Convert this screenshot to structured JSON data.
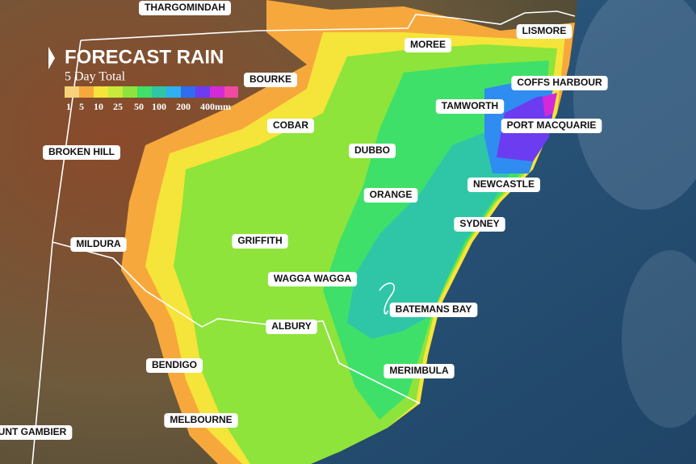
{
  "header": {
    "title": "FORECAST RAIN",
    "subtitle": "5 Day Total"
  },
  "legend": {
    "labels": [
      "1",
      "5",
      "10",
      "25",
      "50",
      "100",
      "200",
      "400mm"
    ]
  },
  "places": [
    "THARGOMINDAH",
    "MOREE",
    "LISMORE",
    "BOURKE",
    "COFFS HARBOUR",
    "TAMWORTH",
    "COBAR",
    "PORT MACQUARIE",
    "DUBBO",
    "BROKEN HILL",
    "NEWCASTLE",
    "ORANGE",
    "SYDNEY",
    "MILDURA",
    "GRIFFITH",
    "WAGGA WAGGA",
    "BATEMANS BAY",
    "ALBURY",
    "MERIMBULA",
    "BENDIGO",
    "MELBOURNE",
    "UNT GAMBIER"
  ]
}
